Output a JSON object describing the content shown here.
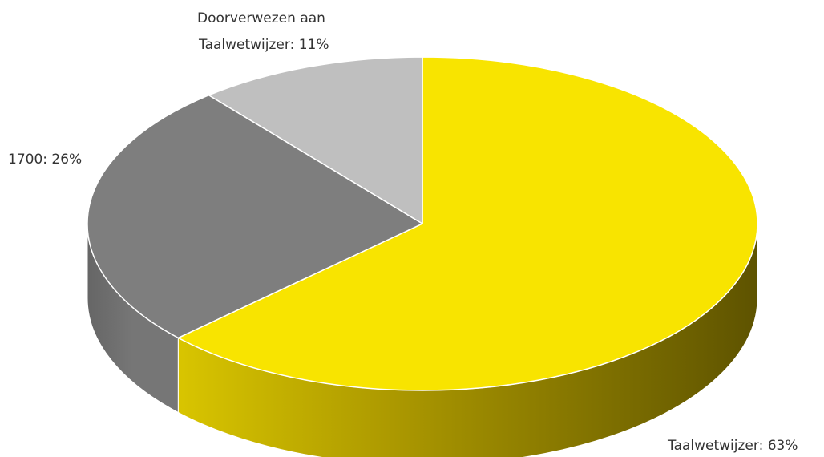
{
  "chart_data": {
    "type": "pie",
    "style": "3d",
    "title": "",
    "slices": [
      {
        "label": "Taalwetwijzer",
        "value": 63,
        "display": "Taalwetwijzer: 63%",
        "color": "#F8E400",
        "side": "#6B5E00",
        "side_light": "#D8C400"
      },
      {
        "label": "1700",
        "value": 26,
        "display": "1700: 26%",
        "color": "#7E7E7E",
        "side": "#5E5E5E",
        "side_light": "#767676"
      },
      {
        "label": "Doorverwezen aan Taalwetwijzer",
        "value": 11,
        "display_lines": [
          "Doorverwezen aan",
          "Taalwetwijzer: 11%"
        ],
        "color": "#BFBFBF",
        "side": "#8F8F8F",
        "side_light": "#A8A8A8"
      }
    ]
  }
}
